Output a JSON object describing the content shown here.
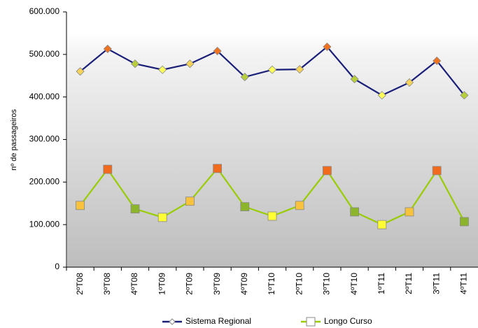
{
  "chart_data": {
    "type": "line",
    "y_label": "nº de passageiros",
    "categories": [
      "2ºT08",
      "3ºT08",
      "4ºT08",
      "1ºT09",
      "2ºT09",
      "3ºT09",
      "4ºT09",
      "1ºT10",
      "2ºT10",
      "3ºT10",
      "4ºT10",
      "1ºT11",
      "2ºT11",
      "3ºT11",
      "4ºT11"
    ],
    "series": [
      {
        "name": "Sistema Regional",
        "color": "#1a1f78",
        "marker": "diamond",
        "values": [
          460000,
          513000,
          478000,
          464000,
          478000,
          508000,
          447000,
          464000,
          465000,
          518000,
          442000,
          404000,
          434000,
          485000,
          404000
        ],
        "point_colors": [
          "#f7d35a",
          "#f2731f",
          "#b8cf3a",
          "#ffff5a",
          "#f7d35a",
          "#f2731f",
          "#b8cf3a",
          "#ffff5a",
          "#f7d35a",
          "#f2731f",
          "#b8cf3a",
          "#ffff5a",
          "#f7d35a",
          "#f2731f",
          "#b8cf3a"
        ]
      },
      {
        "name": "Longo Curso",
        "color": "#99cc00",
        "marker": "square",
        "values": [
          145000,
          230000,
          137000,
          117000,
          155000,
          232000,
          142000,
          120000,
          145000,
          227000,
          130000,
          100000,
          130000,
          227000,
          107000
        ],
        "point_colors": [
          "#f9c23c",
          "#f26a1b",
          "#8cb52c",
          "#ffff33",
          "#f9c23c",
          "#f26a1b",
          "#8cb52c",
          "#ffff33",
          "#f9c23c",
          "#f26a1b",
          "#8cb52c",
          "#ffff33",
          "#f9c23c",
          "#f26a1b",
          "#8cb52c"
        ]
      }
    ],
    "ylim": [
      0,
      600000
    ],
    "yticks": [
      0,
      {
        "value": 100000,
        "label": "100.000"
      },
      {
        "value": 200000,
        "label": "200.000"
      },
      {
        "value": 300000,
        "label": "300.000"
      },
      {
        "value": 400000,
        "label": "400.000"
      },
      {
        "value": 500000,
        "label": "500.000"
      },
      {
        "value": 600000,
        "label": "600.000"
      }
    ],
    "legend": "bottom"
  }
}
